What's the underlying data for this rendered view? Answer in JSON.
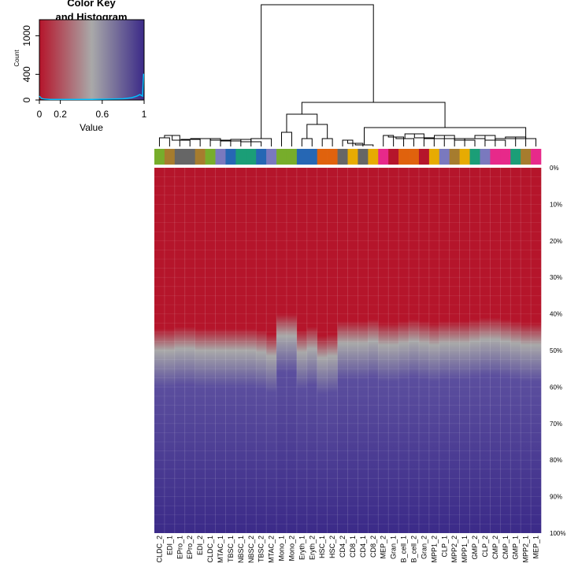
{
  "chart_data": {
    "type": "heatmap",
    "key": {
      "title_line1": "Color Key",
      "title_line2": "and Histogram",
      "xlabel": "Value",
      "ylabel": "Count",
      "xticks": [
        "0",
        "0.2",
        "0.6",
        "1"
      ],
      "xtick_values": [
        0,
        0.2,
        0.6,
        1
      ],
      "yticks": [
        "0",
        "400",
        "1000"
      ],
      "ytick_values": [
        0,
        400,
        1000
      ],
      "ylim": [
        0,
        1250
      ],
      "color_low": "#B5152B",
      "color_mid": "#A9A9A9",
      "color_high": "#3B2A88",
      "histogram_color": "#00C0FF",
      "histogram": [
        [
          0.0,
          60
        ],
        [
          0.02,
          25
        ],
        [
          0.05,
          15
        ],
        [
          0.1,
          10
        ],
        [
          0.2,
          8
        ],
        [
          0.3,
          8
        ],
        [
          0.4,
          9
        ],
        [
          0.5,
          10
        ],
        [
          0.6,
          12
        ],
        [
          0.7,
          15
        ],
        [
          0.8,
          20
        ],
        [
          0.88,
          35
        ],
        [
          0.93,
          60
        ],
        [
          0.96,
          85
        ],
        [
          0.985,
          60
        ],
        [
          0.995,
          400
        ],
        [
          1.0,
          400
        ]
      ]
    },
    "row_labels": [
      "0%",
      "10%",
      "20%",
      "30%",
      "40%",
      "50%",
      "60%",
      "70%",
      "80%",
      "90%",
      "100%"
    ],
    "row_values": [
      0,
      10,
      20,
      30,
      40,
      50,
      60,
      70,
      80,
      90,
      100
    ],
    "columns": [
      {
        "label": "CLDC_2",
        "color": "#77AD2B",
        "transition": 50
      },
      {
        "label": "EDI_1",
        "color": "#A67C2E",
        "transition": 50
      },
      {
        "label": "EPro_1",
        "color": "#666666",
        "transition": 49.5
      },
      {
        "label": "EPro_2",
        "color": "#666666",
        "transition": 49.5
      },
      {
        "label": "EDI_2",
        "color": "#A67C2E",
        "transition": 50
      },
      {
        "label": "CLDC_1",
        "color": "#77AD2B",
        "transition": 50
      },
      {
        "label": "MTAC_1",
        "color": "#7A79BE",
        "transition": 50
      },
      {
        "label": "TBSC_1",
        "color": "#2667B4",
        "transition": 50
      },
      {
        "label": "NBSC_1",
        "color": "#1B9E77",
        "transition": 50
      },
      {
        "label": "NBSC_2",
        "color": "#1B9E77",
        "transition": 50
      },
      {
        "label": "TBSC_2",
        "color": "#2667B4",
        "transition": 50.5
      },
      {
        "label": "MTAC_2",
        "color": "#7A79BE",
        "transition": 51.5
      },
      {
        "label": "Mono_1",
        "color": "#77AD2B",
        "transition": 46
      },
      {
        "label": "Mono_2",
        "color": "#77AD2B",
        "transition": 46
      },
      {
        "label": "Eryth_1",
        "color": "#2667B4",
        "transition": 50.5
      },
      {
        "label": "Eryth_2",
        "color": "#2667B4",
        "transition": 49.5
      },
      {
        "label": "HSC_1",
        "color": "#E0620D",
        "transition": 52
      },
      {
        "label": "HSC_2",
        "color": "#E0620D",
        "transition": 51.5
      },
      {
        "label": "CD4_2",
        "color": "#666666",
        "transition": 48
      },
      {
        "label": "CD8_1",
        "color": "#E7AB02",
        "transition": 48
      },
      {
        "label": "CD4_1",
        "color": "#666666",
        "transition": 48
      },
      {
        "label": "CD8_2",
        "color": "#E7AB02",
        "transition": 47.5
      },
      {
        "label": "MEP_2",
        "color": "#E7298A",
        "transition": 48.5
      },
      {
        "label": "Gran_1",
        "color": "#B5152B",
        "transition": 48.5
      },
      {
        "label": "B_cell_1",
        "color": "#E0620D",
        "transition": 48
      },
      {
        "label": "B_cell_2",
        "color": "#E0620D",
        "transition": 47.5
      },
      {
        "label": "Gran_2",
        "color": "#B5152B",
        "transition": 48
      },
      {
        "label": "MPP1_2",
        "color": "#E7AB02",
        "transition": 48.5
      },
      {
        "label": "CLP_1",
        "color": "#7A79BE",
        "transition": 48
      },
      {
        "label": "MPP2_2",
        "color": "#A67C2E",
        "transition": 48
      },
      {
        "label": "MPP1_1",
        "color": "#E7AB02",
        "transition": 48
      },
      {
        "label": "GMP_2",
        "color": "#1B9E77",
        "transition": 47.5
      },
      {
        "label": "CLP_2",
        "color": "#7A79BE",
        "transition": 47
      },
      {
        "label": "CMP_2",
        "color": "#E7298A",
        "transition": 47
      },
      {
        "label": "CMP_1",
        "color": "#E7298A",
        "transition": 47.5
      },
      {
        "label": "GMP_1",
        "color": "#1B9E77",
        "transition": 48
      },
      {
        "label": "MPP2_1",
        "color": "#A67C2E",
        "transition": 48.5
      },
      {
        "label": "MEP_1",
        "color": "#E7298A",
        "transition": 48.5
      }
    ],
    "grid": false,
    "legend_position": "top-left"
  }
}
